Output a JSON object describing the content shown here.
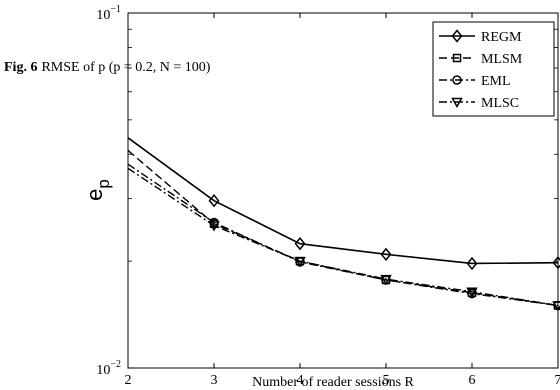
{
  "caption": {
    "label": "Fig. 6",
    "text": "RMSE of p (p = 0.2, N = 100)"
  },
  "chart_data": {
    "type": "line",
    "title": "",
    "xlabel": "Number of reader sessions R",
    "ylabel": "e_p",
    "ylabel_main": "e",
    "ylabel_sub": "p",
    "x": [
      2,
      3,
      4,
      5,
      6,
      7
    ],
    "xlim": [
      2,
      7
    ],
    "ylim": [
      0.01,
      0.1
    ],
    "yscale": "log",
    "x_ticks": [
      "2",
      "3",
      "4",
      "5",
      "6",
      "7"
    ],
    "y_ticks": [
      {
        "base": "10",
        "exp": "−1",
        "value": 0.1
      },
      {
        "base": "10",
        "exp": "−2",
        "value": 0.01
      }
    ],
    "grid": false,
    "legend_position": "top-right",
    "series": [
      {
        "name": "REGM",
        "marker": "diamond",
        "dash": "solid",
        "values": [
          0.0445,
          0.0296,
          0.0224,
          0.0209,
          0.0197,
          0.0198
        ]
      },
      {
        "name": "MLSM",
        "marker": "square",
        "dash": "dashed",
        "values": [
          0.041,
          0.0255,
          0.02,
          0.0177,
          0.0163,
          0.015
        ]
      },
      {
        "name": "EML",
        "marker": "circle",
        "dash": "dashdot",
        "values": [
          0.0375,
          0.0257,
          0.0199,
          0.0177,
          0.0162,
          0.015
        ]
      },
      {
        "name": "MLSC",
        "marker": "triangle-down",
        "dash": "dashdot",
        "values": [
          0.0365,
          0.0252,
          0.02,
          0.0178,
          0.0164,
          0.015
        ]
      }
    ]
  }
}
